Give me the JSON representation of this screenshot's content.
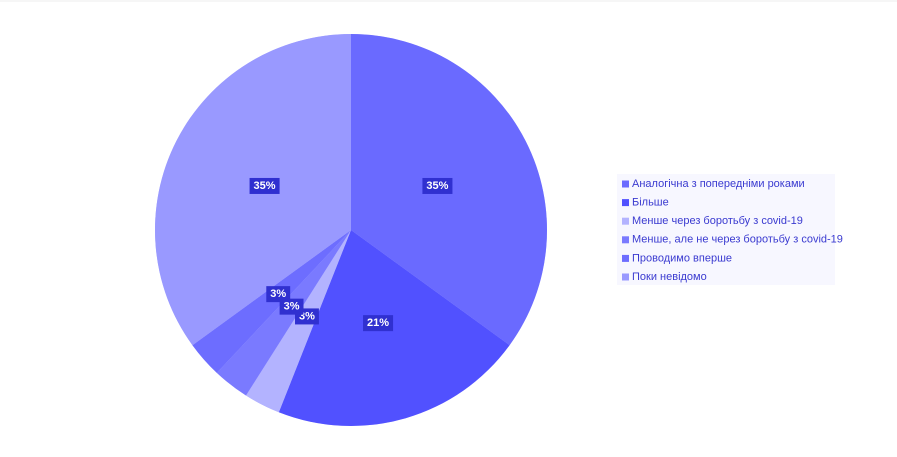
{
  "chart_data": {
    "type": "pie",
    "categories": [
      "Аналогічна з попередніми роками",
      "Більше",
      "Менше через боротьбу з covid-19",
      "Менше, але не через боротьбу з covid-19",
      "Проводимо вперше",
      "Поки невідомо"
    ],
    "values": [
      35,
      21,
      3,
      3,
      3,
      35
    ],
    "value_labels": [
      "35%",
      "21%",
      "3%",
      "3%",
      "3%",
      "35%"
    ],
    "colors": [
      "#6b6bff",
      "#5151ff",
      "#b3b3ff",
      "#7a7aff",
      "#6d6dff",
      "#9999ff"
    ],
    "legend": "right"
  }
}
